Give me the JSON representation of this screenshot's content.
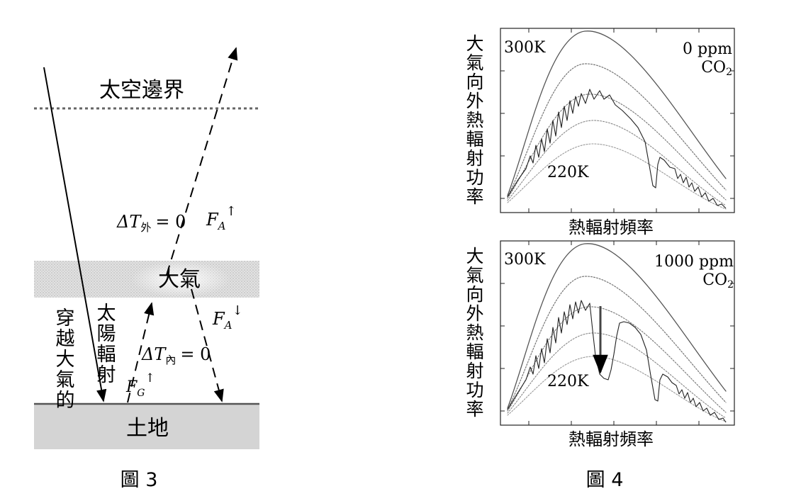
{
  "figure3": {
    "caption": "圖 3",
    "space_boundary_label": "太空邊界",
    "atmosphere_label": "大氣",
    "ground_label": "土地",
    "solar_col1": [
      "穿",
      "越",
      "大",
      "氣",
      "的"
    ],
    "solar_col2": [
      "太",
      "陽",
      "輻",
      "射"
    ],
    "outer": {
      "delta": "ΔT",
      "sub": "外",
      "rhs": "= 0"
    },
    "inner": {
      "delta": "ΔT",
      "sub": "內",
      "rhs": "= 0"
    },
    "fa_up": {
      "base": "F",
      "sub": "A",
      "sup": "↑"
    },
    "fa_down": {
      "base": "F",
      "sub": "A",
      "sup": "↓"
    },
    "fg_up": {
      "base": "F",
      "sub": "G",
      "sup": "↑"
    },
    "colors": {
      "atmosphere": "#dcdcdc",
      "ground": "#d4d4d4",
      "ground_line": "#555555"
    }
  },
  "figure4": {
    "caption": "圖 4",
    "top": {
      "ylabel_chars": [
        "大",
        "氣",
        "向",
        "外",
        "熱",
        "輻",
        "射",
        "功",
        "率"
      ],
      "xlabel": "熱輻射頻率",
      "temp_high": "300K",
      "temp_low": "220K",
      "co2_line1": "0 ppm",
      "co2_line2_base": "CO",
      "co2_line2_sub": "2"
    },
    "bottom": {
      "ylabel_chars": [
        "大",
        "氣",
        "向",
        "外",
        "熱",
        "輻",
        "射",
        "功",
        "率"
      ],
      "xlabel": "熱輻射頻率",
      "temp_high": "300K",
      "temp_low": "220K",
      "co2_line1": "1000 ppm",
      "co2_line2_base": "CO",
      "co2_line2_sub": "2"
    }
  }
}
